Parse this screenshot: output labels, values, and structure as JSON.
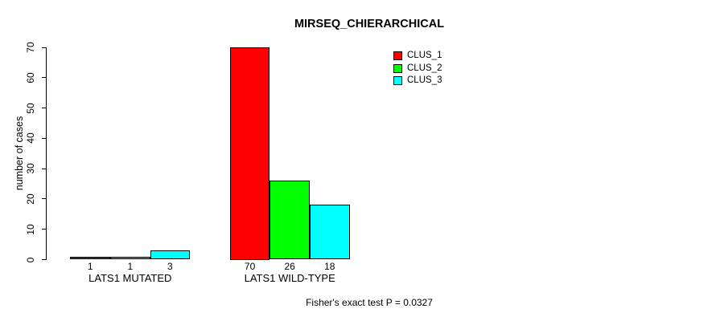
{
  "title": "MIRSEQ_CHIERARCHICAL",
  "annotation": "Fisher's exact test P = 0.0327",
  "y_axis": {
    "label": "number of cases",
    "ticks": [
      0,
      10,
      20,
      30,
      40,
      50,
      60,
      70
    ],
    "range": [
      0,
      70
    ]
  },
  "legend": {
    "position": "top-right-inside",
    "entries": [
      {
        "label": "CLUS_1",
        "color": "#FF0000"
      },
      {
        "label": "CLUS_2",
        "color": "#00FF00"
      },
      {
        "label": "CLUS_3",
        "color": "#00FFFF"
      }
    ]
  },
  "chart_data": {
    "type": "bar",
    "grouped": "beside",
    "title": "MIRSEQ_CHIERARCHICAL",
    "xlabel": "",
    "ylabel": "number of cases",
    "categories": [
      "LATS1 MUTATED",
      "LATS1 WILD-TYPE"
    ],
    "series": [
      {
        "name": "CLUS_1",
        "color": "#FF0000",
        "values": [
          1,
          70
        ]
      },
      {
        "name": "CLUS_2",
        "color": "#00FF00",
        "values": [
          1,
          26
        ]
      },
      {
        "name": "CLUS_3",
        "color": "#00FFFF",
        "values": [
          3,
          18
        ]
      }
    ],
    "bar_value_labels": {
      "LATS1 MUTATED": [
        "1",
        "1",
        "3"
      ],
      "LATS1 WILD-TYPE": [
        "70",
        "26",
        "18"
      ]
    },
    "ylim": [
      0,
      70
    ],
    "yticks": [
      0,
      10,
      20,
      30,
      40,
      50,
      60,
      70
    ],
    "grid": false,
    "legend_position": "top-right-inside",
    "annotation": "Fisher's exact test P = 0.0327"
  }
}
